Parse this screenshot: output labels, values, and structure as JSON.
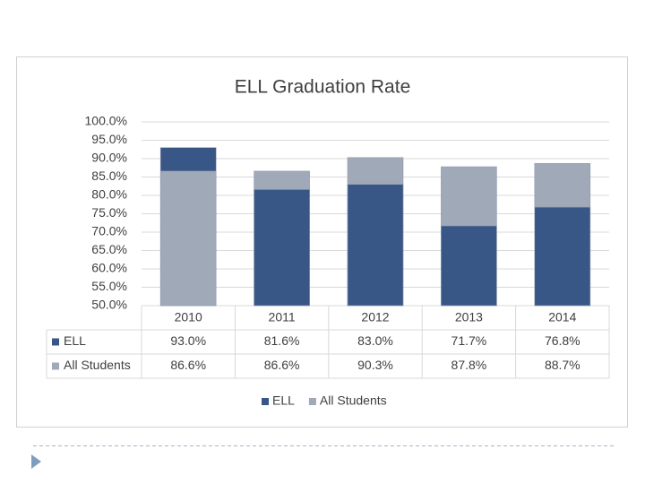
{
  "chart_data": {
    "type": "bar",
    "title": "ELL Graduation Rate",
    "categories": [
      "2010",
      "2011",
      "2012",
      "2013",
      "2014"
    ],
    "series": [
      {
        "name": "ELL",
        "color": "#385686",
        "values": [
          93.0,
          81.6,
          83.0,
          71.7,
          76.8
        ],
        "value_labels": [
          "93.0%",
          "81.6%",
          "83.0%",
          "71.7%",
          "76.8%"
        ]
      },
      {
        "name": "All Students",
        "color": "#a0a9b7",
        "values": [
          86.6,
          86.6,
          90.3,
          87.8,
          88.7
        ],
        "value_labels": [
          "86.6%",
          "86.6%",
          "90.3%",
          "87.8%",
          "88.7%"
        ]
      }
    ],
    "ylim": [
      50,
      100
    ],
    "yticks": [
      {
        "value": 50,
        "label": "50.0%"
      },
      {
        "value": 55,
        "label": "55.0%"
      },
      {
        "value": 60,
        "label": "60.0%"
      },
      {
        "value": 65,
        "label": "65.0%"
      },
      {
        "value": 70,
        "label": "70.0%"
      },
      {
        "value": 75,
        "label": "75.0%"
      },
      {
        "value": 80,
        "label": "80.0%"
      },
      {
        "value": 85,
        "label": "85.0%"
      },
      {
        "value": 90,
        "label": "90.0%"
      },
      {
        "value": 95,
        "label": "95.0%"
      },
      {
        "value": 100,
        "label": "100.0%"
      }
    ],
    "grid": true,
    "legend": "bottom"
  }
}
